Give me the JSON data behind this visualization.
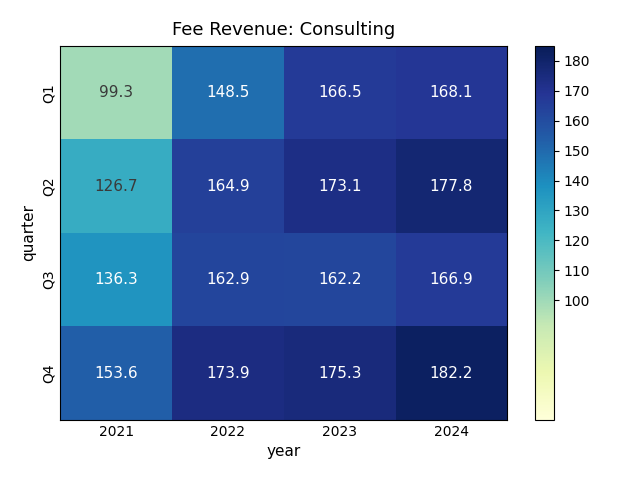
{
  "title": "Fee Revenue: Consulting",
  "xlabel": "year",
  "ylabel": "quarter",
  "years": [
    2021,
    2022,
    2023,
    2024
  ],
  "quarters": [
    "Q1",
    "Q2",
    "Q3",
    "Q4"
  ],
  "values": [
    [
      99.3,
      148.5,
      166.5,
      168.1
    ],
    [
      126.7,
      164.9,
      173.1,
      177.8
    ],
    [
      136.3,
      162.9,
      162.2,
      166.9
    ],
    [
      153.6,
      173.9,
      175.3,
      182.2
    ]
  ],
  "colormap": "YlGnBu",
  "vmin": 60,
  "vmax": 185,
  "cbar_ticks": [
    100,
    110,
    120,
    130,
    140,
    150,
    160,
    170,
    180
  ],
  "cbar_vmin": 97,
  "cbar_vmax": 183,
  "text_color_threshold": 135,
  "dark_text_color": "#3a3a3a",
  "light_text_color": "#ffffff",
  "annot_fontsize": 11,
  "title_fontsize": 13,
  "axis_label_fontsize": 11,
  "tick_fontsize": 10
}
